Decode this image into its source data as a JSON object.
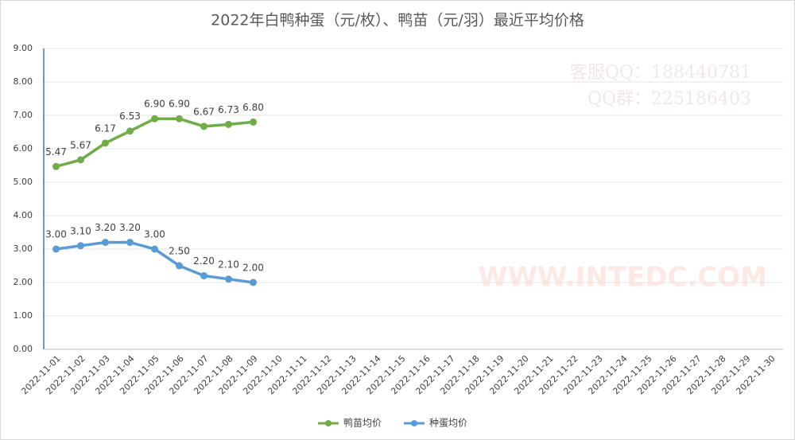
{
  "chart_data": {
    "type": "line",
    "title": "2022年白鸭种蛋（元/枚）、鸭苗（元/羽）最近平均价格",
    "watermark": [
      "客服QQ：188440781",
      "QQ群：225186403",
      "WWW.INTEDC.COM"
    ],
    "categories": [
      "2022-11-01",
      "2022-11-02",
      "2022-11-03",
      "2022-11-04",
      "2022-11-05",
      "2022-11-06",
      "2022-11-07",
      "2022-11-08",
      "2022-11-09",
      "2022-11-10",
      "2022-11-11",
      "2022-11-12",
      "2022-11-13",
      "2022-11-14",
      "2022-11-15",
      "2022-11-16",
      "2022-11-17",
      "2022-11-18",
      "2022-11-19",
      "2022-11-20",
      "2022-11-21",
      "2022-11-22",
      "2022-11-23",
      "2022-11-24",
      "2022-11-25",
      "2022-11-26",
      "2022-11-27",
      "2022-11-28",
      "2022-11-29",
      "2022-11-30"
    ],
    "series": [
      {
        "name": "鸭苗均价",
        "color": "#70ad47",
        "values": [
          5.47,
          5.67,
          6.17,
          6.53,
          6.9,
          6.9,
          6.67,
          6.73,
          6.8,
          null,
          null,
          null,
          null,
          null,
          null,
          null,
          null,
          null,
          null,
          null,
          null,
          null,
          null,
          null,
          null,
          null,
          null,
          null,
          null,
          null
        ],
        "value_labels": [
          "5.47",
          "5.67",
          "6.17",
          "6.53",
          "6.90",
          "6.90",
          "6.67",
          "6.73",
          "6.80",
          null,
          null,
          null,
          null,
          null,
          null,
          null,
          null,
          null,
          null,
          null,
          null,
          null,
          null,
          null,
          null,
          null,
          null,
          null,
          null,
          null
        ]
      },
      {
        "name": "种蛋均价",
        "color": "#5b9bd5",
        "values": [
          3,
          3.1,
          3.2,
          3.2,
          3,
          2.5,
          2.2,
          2.1,
          2,
          null,
          null,
          null,
          null,
          null,
          null,
          null,
          null,
          null,
          null,
          null,
          null,
          null,
          null,
          null,
          null,
          null,
          null,
          null,
          null,
          null
        ],
        "value_labels": [
          "3.00",
          "3.10",
          "3.20",
          "3.20",
          "3.00",
          "2.50",
          "2.20",
          "2.10",
          "2.00",
          null,
          null,
          null,
          null,
          null,
          null,
          null,
          null,
          null,
          null,
          null,
          null,
          null,
          null,
          null,
          null,
          null,
          null,
          null,
          null,
          null
        ]
      }
    ],
    "ylim": [
      0,
      9
    ],
    "yticks": [
      {
        "value": 0,
        "label": "0.00"
      },
      {
        "value": 1,
        "label": "1.00"
      },
      {
        "value": 2,
        "label": "2.00"
      },
      {
        "value": 3,
        "label": "3.00"
      },
      {
        "value": 4,
        "label": "4.00"
      },
      {
        "value": 5,
        "label": "5.00"
      },
      {
        "value": 6,
        "label": "6.00"
      },
      {
        "value": 7,
        "label": "7.00"
      },
      {
        "value": 8,
        "label": "8.00"
      },
      {
        "value": 9,
        "label": "9.00"
      }
    ],
    "grid": true,
    "legend": "bottom"
  }
}
